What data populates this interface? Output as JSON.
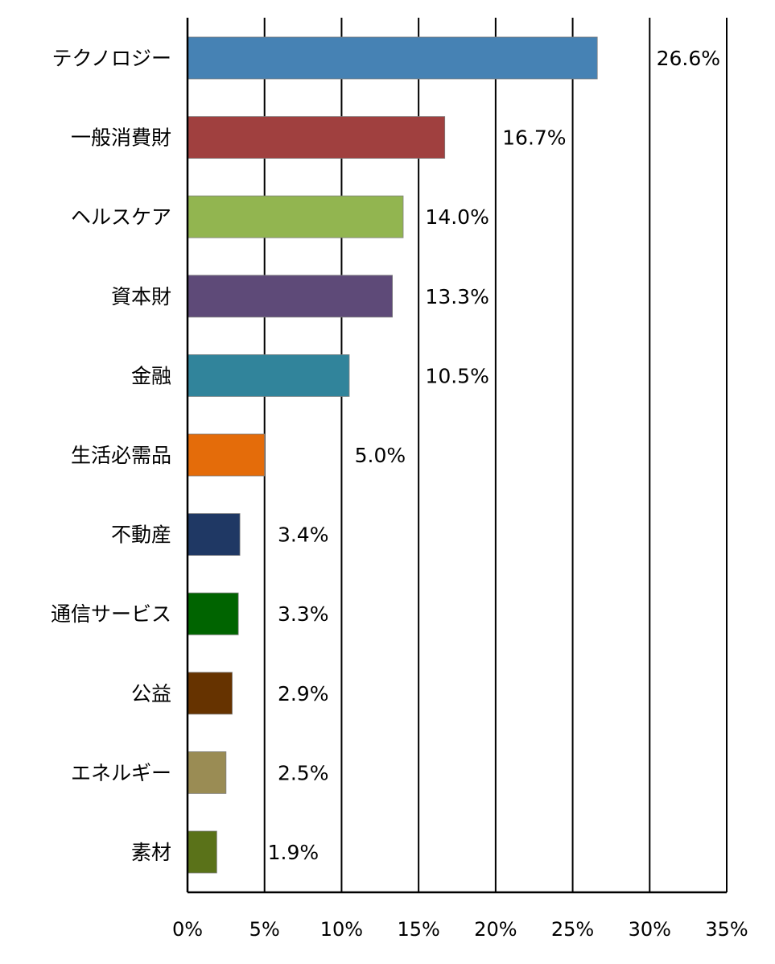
{
  "chart_data": {
    "type": "bar",
    "orientation": "horizontal",
    "categories": [
      "テクノロジー",
      "一般消費財",
      "ヘルスケア",
      "資本財",
      "金融",
      "生活必需品",
      "不動産",
      "通信サービス",
      "公益",
      "エネルギー",
      "素材"
    ],
    "values": [
      26.6,
      16.7,
      14.0,
      13.3,
      10.5,
      5.0,
      3.4,
      3.3,
      2.9,
      2.5,
      1.9
    ],
    "value_labels": [
      "26.6%",
      "16.7%",
      "14.0%",
      "13.3%",
      "10.5%",
      "5.0%",
      "3.4%",
      "3.3%",
      "2.9%",
      "2.5%",
      "1.9%"
    ],
    "colors": [
      "#4682b4",
      "#a0403f",
      "#92b550",
      "#5e4a78",
      "#31849b",
      "#e46c0a",
      "#1f3864",
      "#006400",
      "#663300",
      "#9a8c54",
      "#5a7219"
    ],
    "xlim": [
      0,
      35
    ],
    "x_ticks": [
      0,
      5,
      10,
      15,
      20,
      25,
      30,
      35
    ],
    "x_tick_labels": [
      "0%",
      "5%",
      "10%",
      "15%",
      "20%",
      "25%",
      "30%",
      "35%"
    ],
    "grid": "vertical",
    "legend": "none",
    "title": "",
    "xlabel": "",
    "ylabel": ""
  }
}
